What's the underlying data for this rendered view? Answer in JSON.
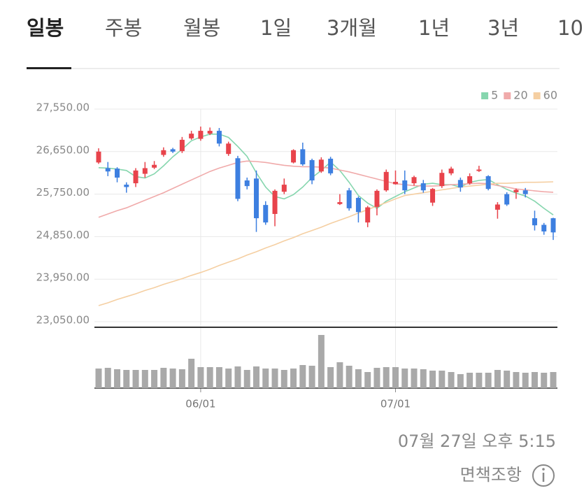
{
  "tabs": [
    "일봉",
    "주봉",
    "월봉",
    "1일",
    "3개월",
    "1년",
    "3년",
    "10"
  ],
  "active_tab": 0,
  "chart_data": {
    "type": "candlestick",
    "categories": [
      null,
      null,
      null,
      null,
      null,
      null,
      null,
      null,
      null,
      null,
      null,
      "06/01",
      null,
      null,
      null,
      null,
      null,
      null,
      null,
      null,
      null,
      null,
      null,
      null,
      null,
      null,
      null,
      null,
      null,
      null,
      null,
      null,
      "07/01",
      null,
      null,
      null,
      null,
      null,
      null,
      null,
      null,
      null,
      null,
      null,
      null,
      null,
      null,
      null,
      null,
      null
    ],
    "open": [
      26420,
      26300,
      26290,
      25950,
      25980,
      26180,
      26310,
      26580,
      26700,
      26660,
      26930,
      26920,
      27030,
      27090,
      26600,
      26510,
      26040,
      26080,
      25520,
      25330,
      25800,
      26420,
      26700,
      26470,
      26230,
      26500,
      25540,
      25830,
      25670,
      25150,
      25480,
      25830,
      25960,
      26040,
      25980,
      25980,
      25570,
      25920,
      26190,
      26050,
      25980,
      26240,
      26130,
      25420,
      25750,
      25790,
      25830,
      25240,
      25100,
      25240
    ],
    "high": [
      26720,
      26430,
      26320,
      26000,
      26300,
      26430,
      26450,
      26740,
      26730,
      26960,
      27090,
      27180,
      27160,
      27150,
      26860,
      26560,
      26100,
      26250,
      25600,
      25850,
      26080,
      26700,
      26840,
      26500,
      26530,
      26540,
      25750,
      25880,
      25700,
      25500,
      25850,
      26270,
      26250,
      26250,
      26140,
      26050,
      25880,
      26270,
      26330,
      26100,
      26190,
      26350,
      26150,
      25580,
      25790,
      25870,
      25880,
      25400,
      25140,
      25250
    ],
    "low": [
      26390,
      26130,
      26000,
      25780,
      25900,
      26100,
      26280,
      26540,
      26620,
      26620,
      26900,
      26880,
      27000,
      26760,
      26560,
      25600,
      25850,
      24950,
      25100,
      25070,
      25750,
      26400,
      26350,
      25960,
      26200,
      26150,
      25520,
      25400,
      25150,
      25050,
      25300,
      25800,
      25950,
      25750,
      25930,
      25780,
      25500,
      25880,
      26150,
      25800,
      25950,
      26220,
      25830,
      25230,
      25500,
      25650,
      25680,
      24980,
      24890,
      24780
    ],
    "close": [
      26650,
      26230,
      26100,
      25900,
      26250,
      26300,
      26370,
      26680,
      26650,
      26900,
      27030,
      27090,
      27090,
      26820,
      26820,
      25650,
      25920,
      25240,
      25150,
      25820,
      25950,
      26680,
      26380,
      26040,
      26480,
      26190,
      25580,
      25450,
      25370,
      25470,
      25820,
      26220,
      26010,
      25830,
      26110,
      25830,
      25860,
      26200,
      26290,
      25890,
      26130,
      26270,
      25860,
      25530,
      25530,
      25840,
      25750,
      25090,
      24960,
      24940
    ],
    "up_color": "#e8434b",
    "down_color": "#3d7fe0",
    "series": [
      {
        "name": "5",
        "color": "#86d6ae",
        "values": [
          26310,
          26300,
          26280,
          26250,
          26120,
          26090,
          26180,
          26350,
          26540,
          26700,
          26880,
          26960,
          27020,
          27020,
          26950,
          26760,
          26550,
          26200,
          25900,
          25700,
          25650,
          25740,
          25900,
          26100,
          26250,
          26430,
          26250,
          26000,
          25720,
          25560,
          25450,
          25600,
          25700,
          25800,
          25880,
          25960,
          25980,
          25950,
          25950,
          25900,
          26000,
          26040,
          26060,
          25950,
          25850,
          25770,
          25710,
          25600,
          25450,
          25310
        ]
      },
      {
        "name": "20",
        "color": "#f0aaaa",
        "values": [
          25260,
          25330,
          25400,
          25460,
          25540,
          25620,
          25700,
          25780,
          25870,
          25960,
          26050,
          26140,
          26230,
          26300,
          26360,
          26420,
          26450,
          26440,
          26420,
          26390,
          26360,
          26340,
          26330,
          26330,
          26320,
          26300,
          26260,
          26220,
          26170,
          26120,
          26070,
          26020,
          25970,
          25950,
          25930,
          25920,
          25920,
          25930,
          25950,
          25960,
          25970,
          25980,
          25970,
          25930,
          25900,
          25860,
          25840,
          25820,
          25800,
          25790
        ]
      },
      {
        "name": "60",
        "color": "#f5cfa2",
        "values": [
          23390,
          23450,
          23520,
          23580,
          23640,
          23710,
          23770,
          23840,
          23900,
          23960,
          24030,
          24090,
          24160,
          24240,
          24310,
          24380,
          24460,
          24530,
          24610,
          24680,
          24760,
          24830,
          24910,
          24980,
          25050,
          25130,
          25200,
          25270,
          25350,
          25420,
          25500,
          25570,
          25650,
          25720,
          25750,
          25780,
          25810,
          25840,
          25870,
          25900,
          25920,
          25940,
          25960,
          25980,
          25980,
          25990,
          26000,
          26000,
          26005,
          26010
        ]
      }
    ],
    "volume": {
      "color": "#a9a9a9",
      "lim": [
        0,
        85
      ],
      "values": [
        28,
        29,
        27,
        26,
        26,
        26,
        26,
        29,
        28,
        27,
        42,
        30,
        30,
        30,
        28,
        31,
        26,
        31,
        28,
        28,
        26,
        28,
        33,
        32,
        76,
        30,
        37,
        32,
        27,
        23,
        29,
        30,
        30,
        28,
        28,
        27,
        25,
        25,
        23,
        20,
        22,
        22,
        22,
        26,
        25,
        23,
        22,
        23,
        22,
        23
      ]
    },
    "ylim": [
      23050,
      27550
    ],
    "yticks": [
      {
        "value": 23050,
        "label": "23,050.00"
      },
      {
        "value": 23950,
        "label": "23,950.00"
      },
      {
        "value": 24850,
        "label": "24,850.00"
      },
      {
        "value": 25750,
        "label": "25,750.00"
      },
      {
        "value": 26650,
        "label": "26,650.00"
      },
      {
        "value": 27550,
        "label": "27,550.00"
      }
    ],
    "grid": true,
    "legend": "top-right"
  },
  "footer": {
    "timestamp": "07월 27일 오후 5:15",
    "disclaimer": "면책조항"
  }
}
